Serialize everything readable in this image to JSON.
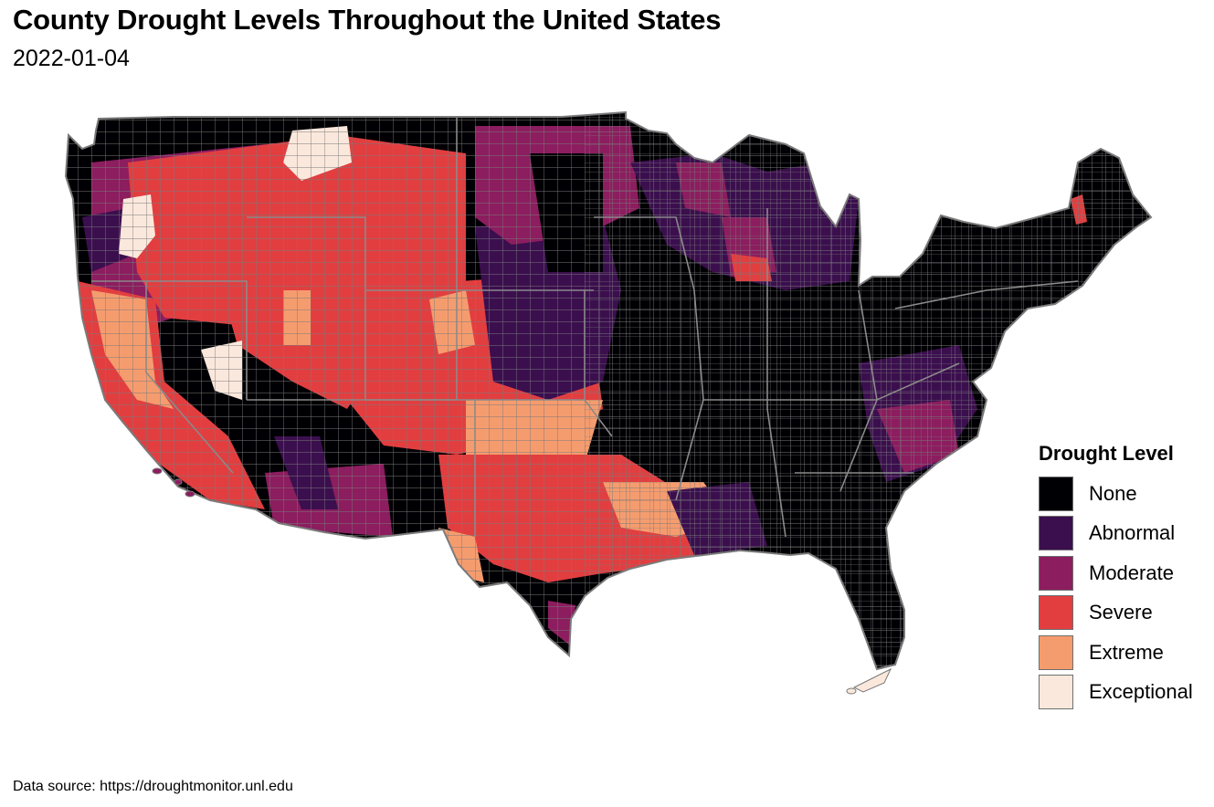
{
  "title": "County Drought Levels Throughout the United States",
  "subtitle": "2022-01-04",
  "caption": "Data source: https://droughtmonitor.unl.edu",
  "map": {
    "type": "choropleth",
    "region": "Contiguous United States, counties",
    "border_color": "#7a7a7a"
  },
  "legend": {
    "title": "Drought Level",
    "placement": "right",
    "items": [
      {
        "label": "None",
        "color": "#000004"
      },
      {
        "label": "Abnormal",
        "color": "#3b0f4e"
      },
      {
        "label": "Moderate",
        "color": "#8c1d5f"
      },
      {
        "label": "Severe",
        "color": "#e23e40"
      },
      {
        "label": "Extreme",
        "color": "#f59c6e"
      },
      {
        "label": "Exceptional",
        "color": "#fbe8dc"
      }
    ]
  }
}
